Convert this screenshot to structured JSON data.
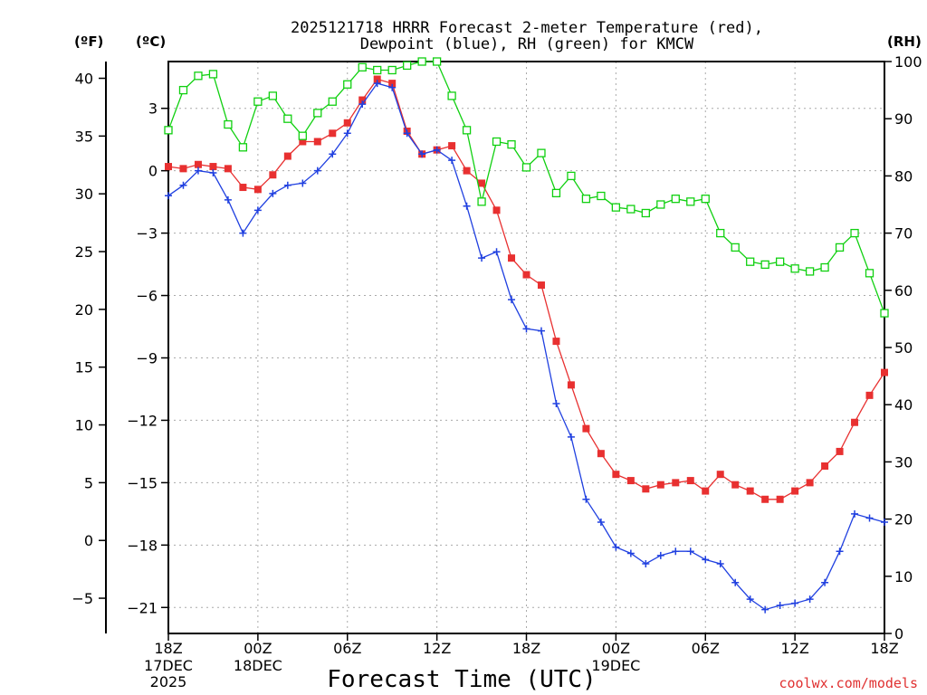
{
  "chart_data": {
    "type": "line",
    "title_line1": "2025121718 HRRR Forecast 2-meter Temperature (red),",
    "title_line2": "Dewpoint (blue), RH (green) for KMCW",
    "xlabel": "Forecast Time (UTC)",
    "credit": "coolwx.com/models",
    "units": {
      "fahrenheit": "(ºF)",
      "celsius": "(ºC)",
      "rh": "(RH)"
    },
    "colors": {
      "temperature": "#e83030",
      "dewpoint": "#2040e0",
      "rh": "#10d010",
      "credit": "#e03030"
    },
    "ylim_celsius": [
      -22.25,
      5.25
    ],
    "ylim_fahrenheit": [
      -8.05,
      41.45
    ],
    "ylim_rh": [
      0,
      100
    ],
    "celsius_ticks": [
      "3",
      "0",
      "−3",
      "−6",
      "−9",
      "−12",
      "−15",
      "−18",
      "−21"
    ],
    "celsius_tick_values": [
      3,
      0,
      -3,
      -6,
      -9,
      -12,
      -15,
      -18,
      -21
    ],
    "fahrenheit_ticks": [
      "40",
      "35",
      "30",
      "25",
      "20",
      "15",
      "10",
      "5",
      "0",
      "−5"
    ],
    "fahrenheit_tick_values": [
      40,
      35,
      30,
      25,
      20,
      15,
      10,
      5,
      0,
      -5
    ],
    "rh_ticks": [
      "100",
      "90",
      "80",
      "70",
      "60",
      "50",
      "40",
      "30",
      "20",
      "10",
      "0"
    ],
    "rh_tick_values": [
      100,
      90,
      80,
      70,
      60,
      50,
      40,
      30,
      20,
      10,
      0
    ],
    "x_ticks": [
      {
        "hour": 0,
        "label": "18Z",
        "date": "17DEC",
        "year": "2025"
      },
      {
        "hour": 6,
        "label": "00Z",
        "date": "18DEC",
        "year": ""
      },
      {
        "hour": 12,
        "label": "06Z",
        "date": "",
        "year": ""
      },
      {
        "hour": 18,
        "label": "12Z",
        "date": "",
        "year": ""
      },
      {
        "hour": 24,
        "label": "18Z",
        "date": "",
        "year": ""
      },
      {
        "hour": 30,
        "label": "00Z",
        "date": "19DEC",
        "year": ""
      },
      {
        "hour": 36,
        "label": "06Z",
        "date": "",
        "year": ""
      },
      {
        "hour": 42,
        "label": "12Z",
        "date": "",
        "year": ""
      },
      {
        "hour": 48,
        "label": "18Z",
        "date": "",
        "year": ""
      }
    ],
    "xlim_hours": [
      0,
      48
    ],
    "series": [
      {
        "name": "Temperature",
        "unit": "C",
        "values": [
          0.2,
          0.1,
          0.3,
          0.2,
          0.1,
          -0.8,
          -0.9,
          -0.2,
          0.7,
          1.4,
          1.4,
          1.8,
          2.3,
          3.4,
          4.4,
          4.2,
          1.9,
          0.8,
          1.0,
          1.2,
          0.0,
          -0.6,
          -1.9,
          -4.2,
          -5.0,
          -5.5,
          -8.2,
          -10.3,
          -12.4,
          -13.6,
          -14.6,
          -14.9,
          -15.3,
          -15.1,
          -15.0,
          -14.9,
          -15.4,
          -14.6,
          -15.1,
          -15.4,
          -15.8,
          -15.8,
          -15.4,
          -15.0,
          -14.2,
          -13.5,
          -12.1,
          -10.8,
          -9.7
        ]
      },
      {
        "name": "Dewpoint",
        "unit": "C",
        "values": [
          -1.2,
          -0.7,
          0.0,
          -0.1,
          -1.4,
          -3.0,
          -1.9,
          -1.1,
          -0.7,
          -0.6,
          0.0,
          0.8,
          1.8,
          3.2,
          4.2,
          4.0,
          1.8,
          0.8,
          1.0,
          0.5,
          -1.7,
          -4.2,
          -3.9,
          -6.2,
          -7.6,
          -7.7,
          -11.2,
          -12.8,
          -15.8,
          -16.9,
          -18.1,
          -18.4,
          -18.9,
          -18.5,
          -18.3,
          -18.3,
          -18.7,
          -18.9,
          -19.8,
          -20.6,
          -21.1,
          -20.9,
          -20.8,
          -20.6,
          -19.8,
          -18.3,
          -16.5,
          -16.7,
          -16.9
        ]
      },
      {
        "name": "RH",
        "unit": "%",
        "values": [
          88,
          95,
          97.5,
          97.8,
          89,
          85,
          93,
          94,
          90,
          87,
          91,
          93,
          96,
          99,
          98.5,
          98.5,
          99.3,
          100,
          100,
          94,
          88,
          75.5,
          86,
          85.5,
          81.5,
          84,
          77,
          80,
          76,
          76.5,
          74.5,
          74.2,
          73.5,
          75,
          76,
          75.5,
          76,
          70,
          67.5,
          65,
          64.5,
          65,
          63.8,
          63.3,
          64,
          67.5,
          70,
          63,
          56
        ]
      }
    ]
  }
}
